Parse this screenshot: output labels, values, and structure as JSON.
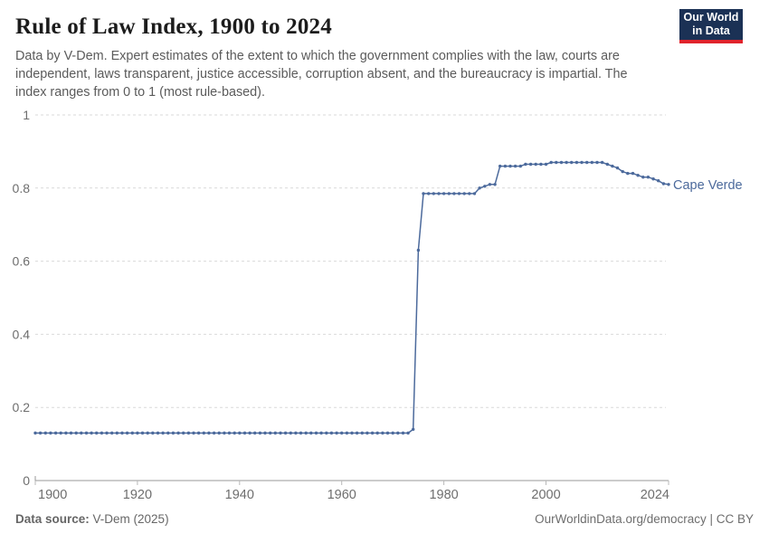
{
  "header": {
    "title": "Rule of Law Index, 1900 to 2024",
    "subtitle": "Data by V-Dem. Expert estimates of the extent to which the government complies with the law, courts are independent, laws transparent, justice accessible, corruption absent, and the bureaucracy is impartial. The index ranges from 0 to 1 (most rule-based).",
    "logo": {
      "line1": "Our World",
      "line2": "in Data"
    }
  },
  "footer": {
    "source_label": "Data source:",
    "source_value": " V-Dem (2025)",
    "credit": "OurWorldinData.org/democracy | CC BY"
  },
  "colors": {
    "line": "#4C6A9C",
    "entity_label": "#4C6A9C",
    "grid": "#d9d9d9",
    "axis": "#999999",
    "tick": "#b8b8b8",
    "tick_label": "#6e6e6e",
    "logo_bg": "#1b3155",
    "logo_stripe": "#e0232c"
  },
  "chart_data": {
    "type": "line",
    "title": "Rule of Law Index, 1900 to 2024",
    "entity": "Cape Verde",
    "xlabel": "",
    "ylabel": "",
    "xlim": [
      1900,
      2024
    ],
    "ylim": [
      0,
      1
    ],
    "x_ticks": [
      1900,
      1920,
      1940,
      1960,
      1980,
      2000,
      2024
    ],
    "y_ticks": [
      0,
      0.2,
      0.4,
      0.6,
      0.8,
      1
    ],
    "grid": "horizontal-dashed",
    "legend": "end-of-line-label",
    "series": [
      {
        "name": "Cape Verde",
        "points": [
          [
            1900,
            0.13
          ],
          [
            1901,
            0.13
          ],
          [
            1902,
            0.13
          ],
          [
            1903,
            0.13
          ],
          [
            1904,
            0.13
          ],
          [
            1905,
            0.13
          ],
          [
            1906,
            0.13
          ],
          [
            1907,
            0.13
          ],
          [
            1908,
            0.13
          ],
          [
            1909,
            0.13
          ],
          [
            1910,
            0.13
          ],
          [
            1911,
            0.13
          ],
          [
            1912,
            0.13
          ],
          [
            1913,
            0.13
          ],
          [
            1914,
            0.13
          ],
          [
            1915,
            0.13
          ],
          [
            1916,
            0.13
          ],
          [
            1917,
            0.13
          ],
          [
            1918,
            0.13
          ],
          [
            1919,
            0.13
          ],
          [
            1920,
            0.13
          ],
          [
            1921,
            0.13
          ],
          [
            1922,
            0.13
          ],
          [
            1923,
            0.13
          ],
          [
            1924,
            0.13
          ],
          [
            1925,
            0.13
          ],
          [
            1926,
            0.13
          ],
          [
            1927,
            0.13
          ],
          [
            1928,
            0.13
          ],
          [
            1929,
            0.13
          ],
          [
            1930,
            0.13
          ],
          [
            1931,
            0.13
          ],
          [
            1932,
            0.13
          ],
          [
            1933,
            0.13
          ],
          [
            1934,
            0.13
          ],
          [
            1935,
            0.13
          ],
          [
            1936,
            0.13
          ],
          [
            1937,
            0.13
          ],
          [
            1938,
            0.13
          ],
          [
            1939,
            0.13
          ],
          [
            1940,
            0.13
          ],
          [
            1941,
            0.13
          ],
          [
            1942,
            0.13
          ],
          [
            1943,
            0.13
          ],
          [
            1944,
            0.13
          ],
          [
            1945,
            0.13
          ],
          [
            1946,
            0.13
          ],
          [
            1947,
            0.13
          ],
          [
            1948,
            0.13
          ],
          [
            1949,
            0.13
          ],
          [
            1950,
            0.13
          ],
          [
            1951,
            0.13
          ],
          [
            1952,
            0.13
          ],
          [
            1953,
            0.13
          ],
          [
            1954,
            0.13
          ],
          [
            1955,
            0.13
          ],
          [
            1956,
            0.13
          ],
          [
            1957,
            0.13
          ],
          [
            1958,
            0.13
          ],
          [
            1959,
            0.13
          ],
          [
            1960,
            0.13
          ],
          [
            1961,
            0.13
          ],
          [
            1962,
            0.13
          ],
          [
            1963,
            0.13
          ],
          [
            1964,
            0.13
          ],
          [
            1965,
            0.13
          ],
          [
            1966,
            0.13
          ],
          [
            1967,
            0.13
          ],
          [
            1968,
            0.13
          ],
          [
            1969,
            0.13
          ],
          [
            1970,
            0.13
          ],
          [
            1971,
            0.13
          ],
          [
            1972,
            0.13
          ],
          [
            1973,
            0.13
          ],
          [
            1974,
            0.14
          ],
          [
            1975,
            0.63
          ],
          [
            1976,
            0.785
          ],
          [
            1977,
            0.785
          ],
          [
            1978,
            0.785
          ],
          [
            1979,
            0.785
          ],
          [
            1980,
            0.785
          ],
          [
            1981,
            0.785
          ],
          [
            1982,
            0.785
          ],
          [
            1983,
            0.785
          ],
          [
            1984,
            0.785
          ],
          [
            1985,
            0.785
          ],
          [
            1986,
            0.785
          ],
          [
            1987,
            0.8
          ],
          [
            1988,
            0.805
          ],
          [
            1989,
            0.81
          ],
          [
            1990,
            0.81
          ],
          [
            1991,
            0.86
          ],
          [
            1992,
            0.86
          ],
          [
            1993,
            0.86
          ],
          [
            1994,
            0.86
          ],
          [
            1995,
            0.86
          ],
          [
            1996,
            0.865
          ],
          [
            1997,
            0.865
          ],
          [
            1998,
            0.865
          ],
          [
            1999,
            0.865
          ],
          [
            2000,
            0.865
          ],
          [
            2001,
            0.87
          ],
          [
            2002,
            0.87
          ],
          [
            2003,
            0.87
          ],
          [
            2004,
            0.87
          ],
          [
            2005,
            0.87
          ],
          [
            2006,
            0.87
          ],
          [
            2007,
            0.87
          ],
          [
            2008,
            0.87
          ],
          [
            2009,
            0.87
          ],
          [
            2010,
            0.87
          ],
          [
            2011,
            0.87
          ],
          [
            2012,
            0.865
          ],
          [
            2013,
            0.86
          ],
          [
            2014,
            0.855
          ],
          [
            2015,
            0.845
          ],
          [
            2016,
            0.84
          ],
          [
            2017,
            0.84
          ],
          [
            2018,
            0.835
          ],
          [
            2019,
            0.83
          ],
          [
            2020,
            0.83
          ],
          [
            2021,
            0.825
          ],
          [
            2022,
            0.82
          ],
          [
            2023,
            0.812
          ],
          [
            2024,
            0.81
          ]
        ]
      }
    ]
  }
}
